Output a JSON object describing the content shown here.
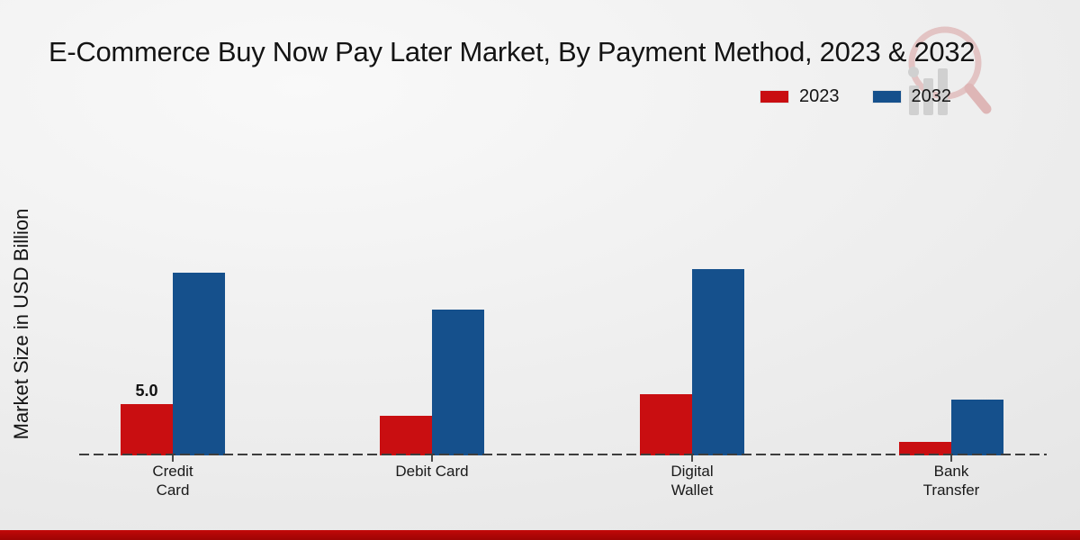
{
  "title": "E-Commerce Buy Now Pay Later Market, By Payment Method, 2023 & 2032",
  "y_axis_label": "Market Size in USD Billion",
  "legend": [
    {
      "label": "2023",
      "color": "#c90e11"
    },
    {
      "label": "2032",
      "color": "#15508c"
    }
  ],
  "colors": {
    "series_2023": "#c90e11",
    "series_2032": "#15508c",
    "footer_banner": "#b00606",
    "title_text": "#141414",
    "watermark_glass": "#d89a9a",
    "watermark_bars": "#b3b3b3"
  },
  "watermark_icon": "magnifier-bar-chart-logo",
  "chart_data": {
    "type": "bar",
    "title": "E-Commerce Buy Now Pay Later Market, By Payment Method, 2023 & 2032",
    "categories": [
      "Credit Card",
      "Debit Card",
      "Digital Wallet",
      "Bank Transfer"
    ],
    "category_label_lines": [
      "Credit\nCard",
      "Debit Card",
      "Digital\nWallet",
      "Bank\nTransfer"
    ],
    "series": [
      {
        "name": "2023",
        "color": "#c90e11",
        "values": [
          5.0,
          3.9,
          6.0,
          1.3
        ]
      },
      {
        "name": "2032",
        "color": "#15508c",
        "values": [
          17.8,
          14.2,
          18.2,
          5.4
        ]
      }
    ],
    "bar_value_labels": [
      {
        "category_index": 0,
        "series_index": 0,
        "text": "5.0"
      }
    ],
    "xlabel": "",
    "ylabel": "Market Size in USD Billion",
    "ylim": [
      0,
      20
    ],
    "grid": false,
    "legend_position": "top-right",
    "baseline_style": "dashed"
  }
}
